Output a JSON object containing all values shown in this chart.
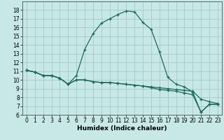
{
  "xlabel": "Humidex (Indice chaleur)",
  "background_color": "#c8e8e8",
  "grid_color": "#aacccc",
  "line_color": "#1a6b5a",
  "xlim": [
    -0.5,
    23.5
  ],
  "ylim": [
    6,
    19
  ],
  "xticks": [
    0,
    1,
    2,
    3,
    4,
    5,
    6,
    7,
    8,
    9,
    10,
    11,
    12,
    13,
    14,
    15,
    16,
    17,
    18,
    19,
    20,
    21,
    22,
    23
  ],
  "yticks": [
    6,
    7,
    8,
    9,
    10,
    11,
    12,
    13,
    14,
    15,
    16,
    17,
    18
  ],
  "series": [
    {
      "x": [
        0,
        1,
        2,
        3,
        4,
        5,
        6,
        7,
        8,
        9,
        10,
        11,
        12,
        13,
        14,
        15,
        16,
        17,
        18,
        19,
        20,
        21,
        22,
        23
      ],
      "y": [
        11.1,
        10.9,
        10.5,
        10.5,
        10.2,
        9.5,
        10.5,
        13.5,
        15.3,
        16.5,
        17.0,
        17.5,
        17.9,
        17.8,
        16.6,
        15.8,
        13.2,
        10.3,
        9.5,
        9.2,
        8.6,
        6.3,
        7.2,
        7.2
      ]
    },
    {
      "x": [
        0,
        1,
        2,
        3,
        4,
        5,
        6,
        7,
        8,
        9,
        10,
        11,
        12,
        13,
        14,
        15,
        16,
        17,
        18,
        19,
        20,
        21,
        22,
        23
      ],
      "y": [
        11.1,
        10.9,
        10.5,
        10.5,
        10.2,
        9.5,
        10.0,
        10.0,
        9.8,
        9.7,
        9.7,
        9.6,
        9.5,
        9.4,
        9.3,
        9.2,
        9.1,
        9.0,
        8.9,
        8.8,
        8.7,
        7.8,
        7.5,
        7.3
      ]
    },
    {
      "x": [
        0,
        1,
        2,
        3,
        4,
        5,
        6,
        7,
        8,
        9,
        10,
        11,
        12,
        13,
        14,
        15,
        16,
        17,
        18,
        19,
        20,
        21,
        22,
        23
      ],
      "y": [
        11.1,
        10.9,
        10.5,
        10.5,
        10.2,
        9.5,
        10.0,
        10.0,
        9.8,
        9.7,
        9.7,
        9.6,
        9.5,
        9.4,
        9.3,
        9.1,
        8.9,
        8.8,
        8.7,
        8.5,
        8.3,
        6.3,
        7.2,
        7.2
      ]
    }
  ]
}
